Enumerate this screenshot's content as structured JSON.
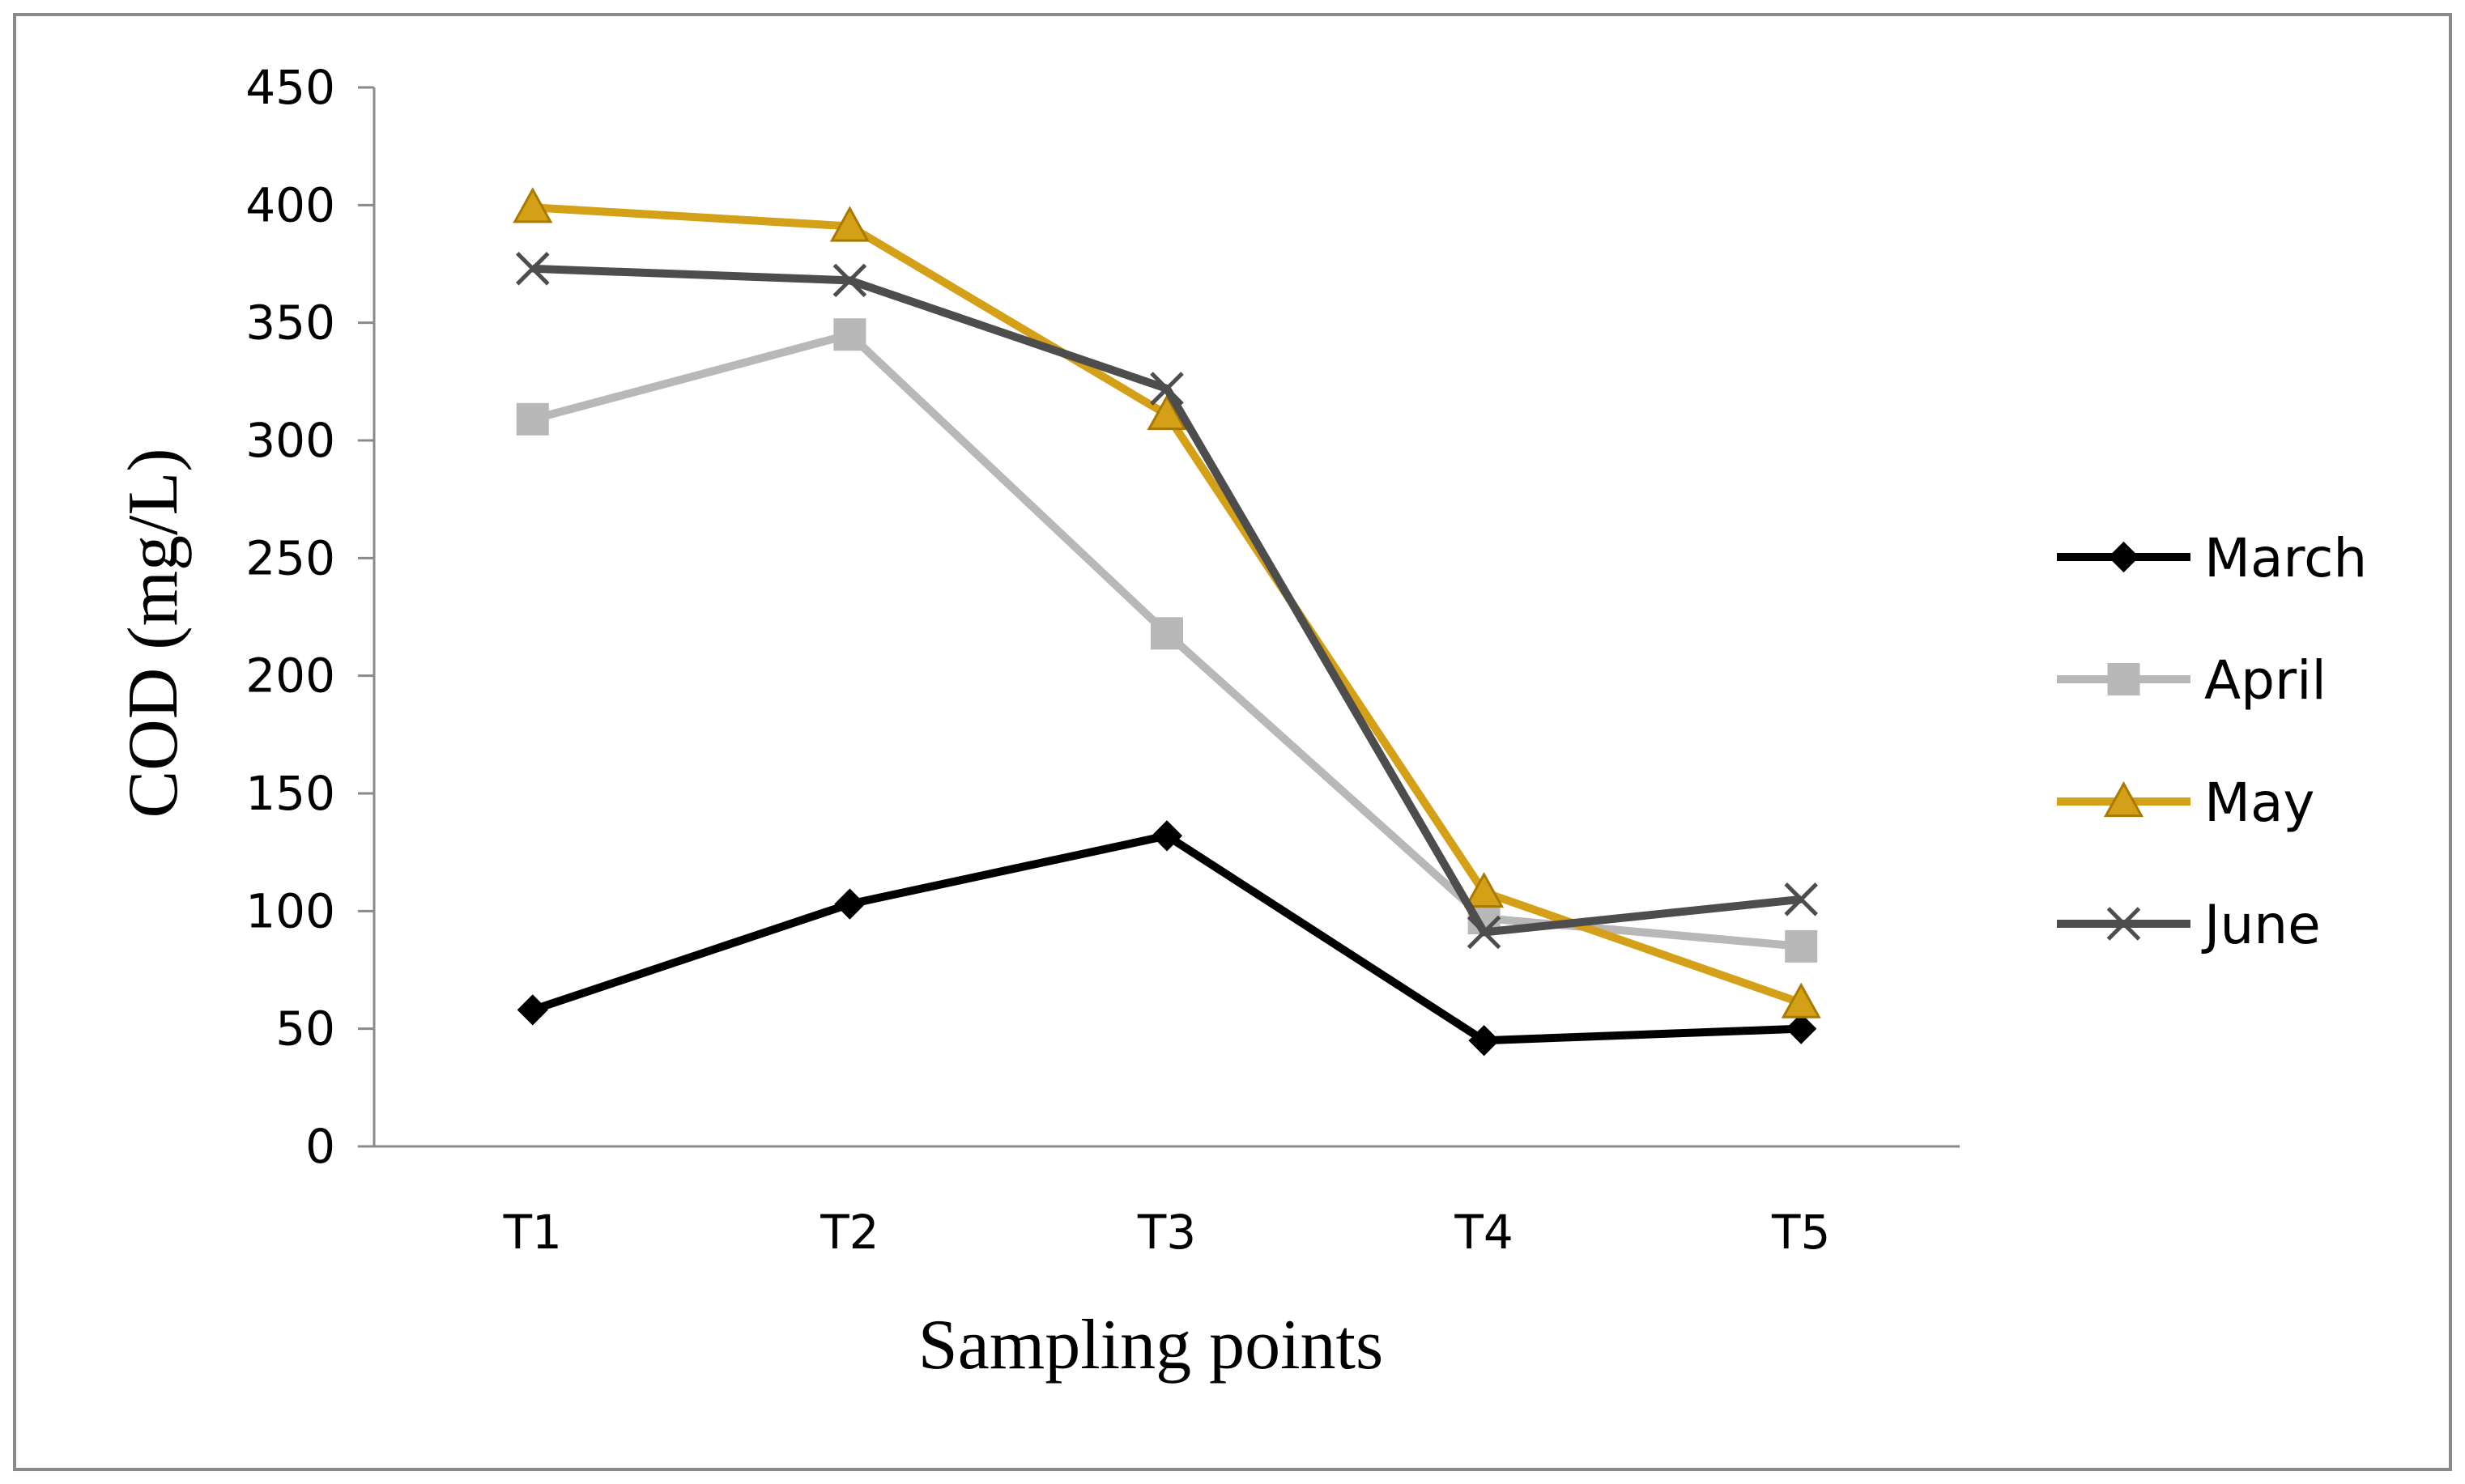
{
  "chart_data": {
    "type": "line",
    "title": "",
    "xlabel": "Sampling points",
    "ylabel": "COD (mg/L)",
    "categories": [
      "T1",
      "T2",
      "T3",
      "T4",
      "T5"
    ],
    "ylim": [
      0,
      450
    ],
    "yticks": [
      0,
      50,
      100,
      150,
      200,
      250,
      300,
      350,
      400,
      450
    ],
    "grid": false,
    "legend_position": "right",
    "series": [
      {
        "name": "March",
        "color": "#000000",
        "marker": "diamond",
        "values": [
          58,
          103,
          132,
          45,
          50
        ]
      },
      {
        "name": "April",
        "color": "#b8b8b8",
        "marker": "square",
        "values": [
          309,
          345,
          218,
          97,
          85
        ]
      },
      {
        "name": "May",
        "color": "#d4a017",
        "marker": "triangle",
        "values": [
          399,
          391,
          311,
          108,
          61
        ]
      },
      {
        "name": "June",
        "color": "#4d4d4d",
        "marker": "x",
        "values": [
          373,
          368,
          322,
          91,
          105
        ]
      }
    ]
  }
}
